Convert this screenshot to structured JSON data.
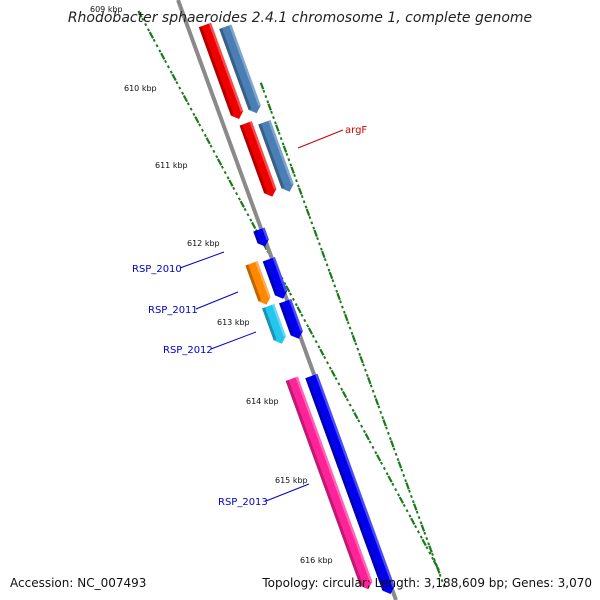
{
  "title": "Rhodobacter sphaeroides 2.4.1 chromosome 1, complete genome",
  "footer": {
    "accession": "Accession: NC_007493",
    "summary": "Topology: circular; Length: 3,188,609 bp; Genes: 3,070"
  },
  "scale_labels": [
    "609 kbp",
    "610 kbp",
    "611 kbp",
    "612 kbp",
    "613 kbp",
    "614 kbp",
    "615 kbp",
    "616 kbp"
  ],
  "gene_labels": [
    {
      "name": "argF",
      "color": "#cc0000"
    },
    {
      "name": "RSP_2010",
      "color": "#0000cc"
    },
    {
      "name": "RSP_2011",
      "color": "#0000cc"
    },
    {
      "name": "RSP_2012",
      "color": "#0000cc"
    },
    {
      "name": "RSP_2013",
      "color": "#0000cc"
    }
  ],
  "colors": {
    "backbone": "#8a8a8a",
    "tick": "#1a7a1a",
    "red_feature": "#ee0000",
    "steelblue_feature": "#4a7fb5",
    "blue_feature": "#0000ee",
    "orange_feature": "#ff8800",
    "cyan_feature": "#22c6ee",
    "pink_feature": "#ff2299"
  }
}
